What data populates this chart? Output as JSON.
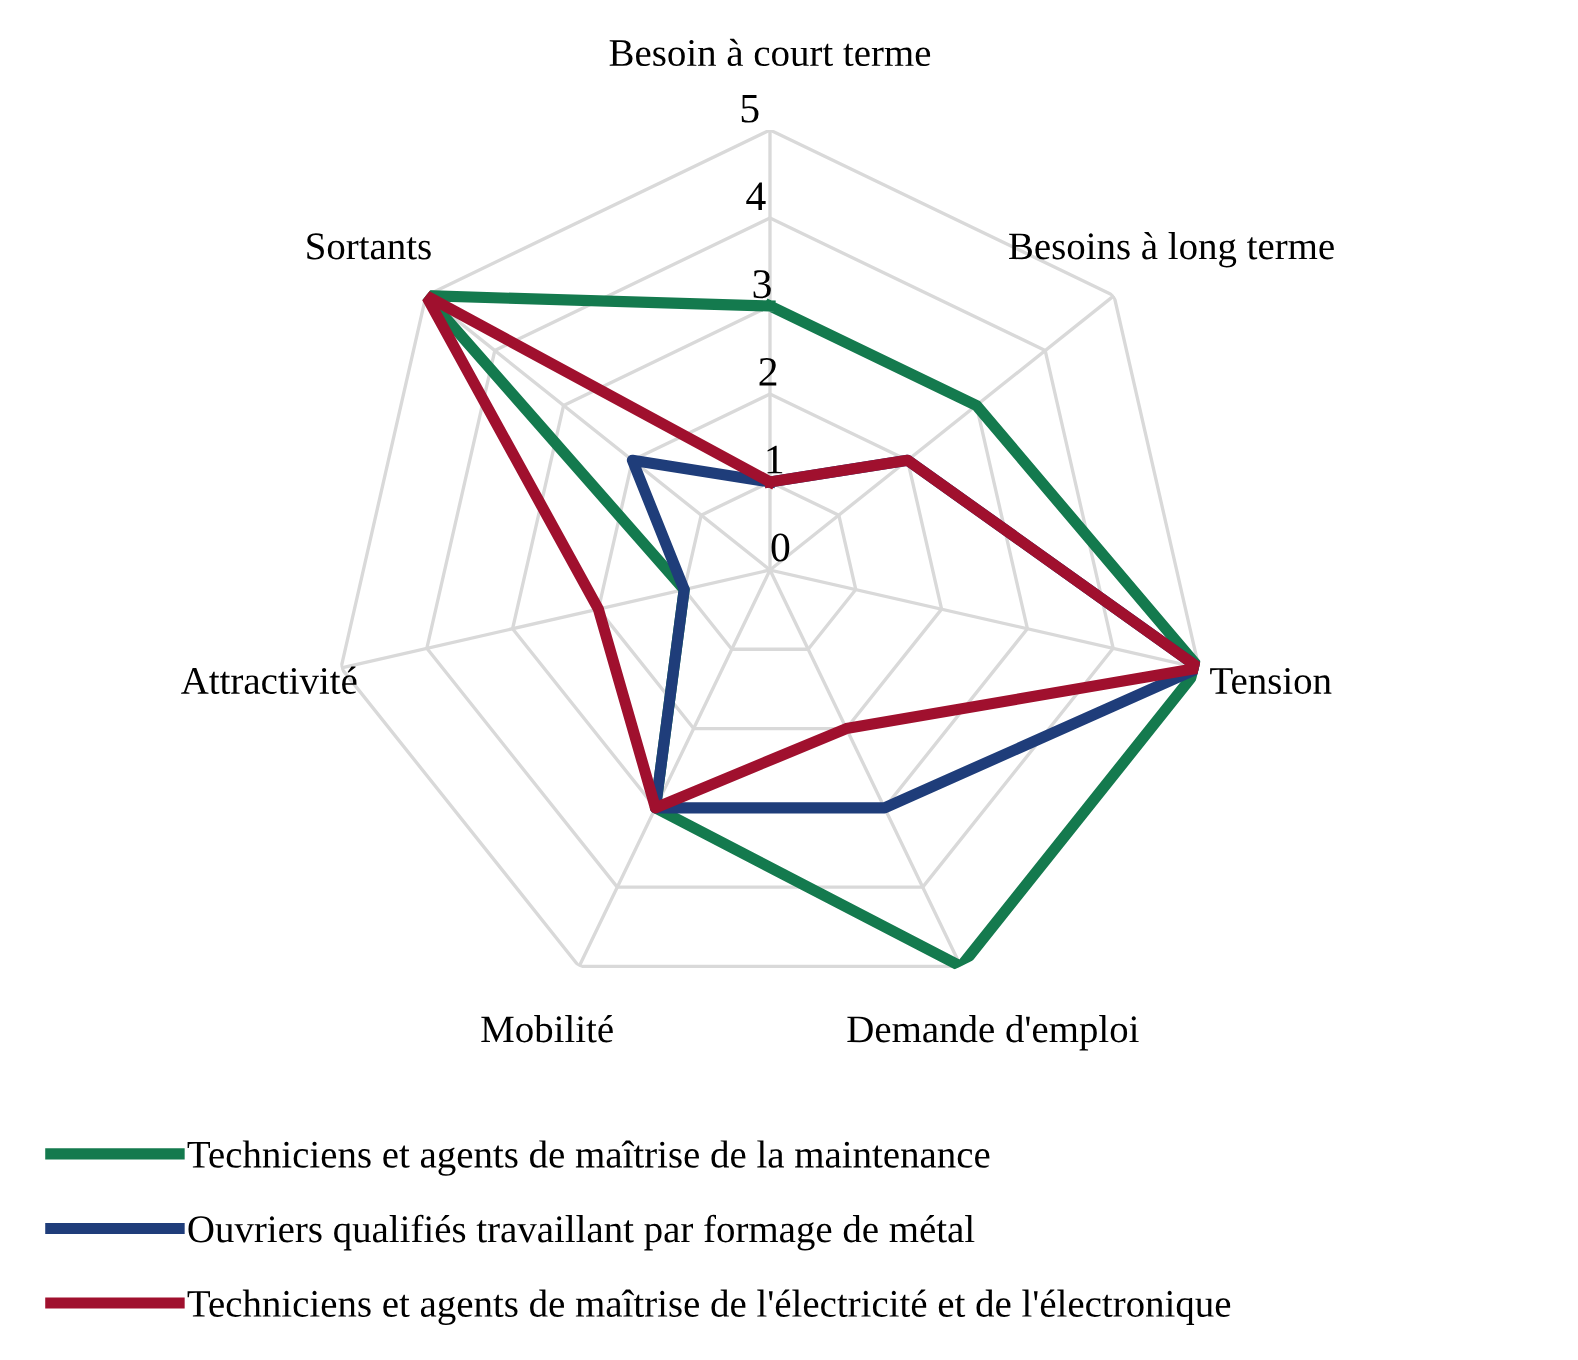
{
  "chart_data": {
    "type": "radar",
    "categories": [
      "Besoin à court terme",
      "Besoins à long terme",
      "Tension",
      "Demande d'emploi",
      "Mobilité",
      "Attractivité",
      "Sortants"
    ],
    "series": [
      {
        "name": "Techniciens et agents de maîtrise de la maintenance",
        "color": "#147a4e",
        "values": [
          3,
          3,
          5,
          5,
          3,
          1,
          5
        ]
      },
      {
        "name": "Ouvriers qualifiés travaillant par formage de métal",
        "color": "#1f3d7a",
        "values": [
          1,
          2,
          5,
          3,
          3,
          1,
          2
        ]
      },
      {
        "name": "Techniciens et agents de maîtrise de l'électricité et de l'électronique",
        "color": "#a0102e",
        "values": [
          1,
          2,
          5,
          2,
          3,
          2,
          5
        ]
      }
    ],
    "ylim": [
      0,
      5
    ],
    "yticks": [
      0,
      1,
      2,
      3,
      4,
      5
    ],
    "grid": true,
    "legend": "bottom",
    "line_style": "solid",
    "marker": "none"
  }
}
